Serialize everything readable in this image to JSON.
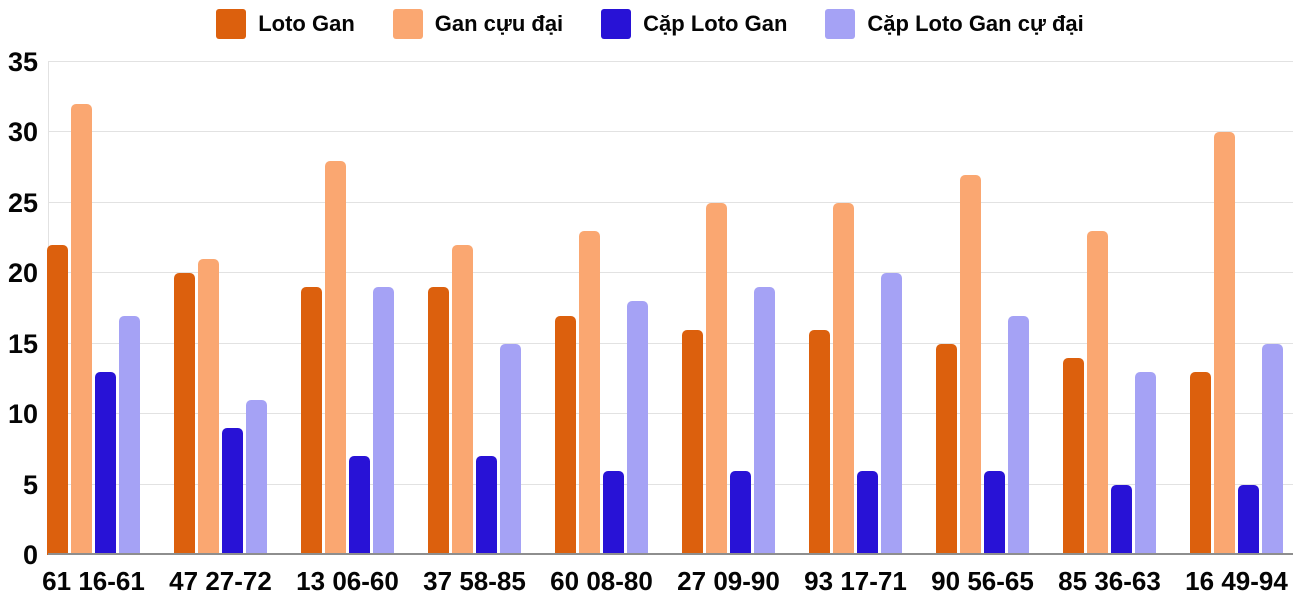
{
  "chart_data": {
    "type": "bar",
    "title": "",
    "xlabel": "",
    "ylabel": "",
    "ylim": [
      0,
      35
    ],
    "yticks": [
      0,
      5,
      10,
      15,
      20,
      25,
      30,
      35
    ],
    "grid": true,
    "legend_position": "top",
    "categories": [
      "61 16-61",
      "47 27-72",
      "13 06-60",
      "37 58-85",
      "60 08-80",
      "27 09-90",
      "93 17-71",
      "90 56-65",
      "85 36-63",
      "16 49-94"
    ],
    "series": [
      {
        "name": "Loto Gan",
        "color": "#dc600d",
        "values": [
          22,
          20,
          19,
          19,
          17,
          16,
          16,
          15,
          14,
          13
        ]
      },
      {
        "name": "Gan cựu đại",
        "color": "#faa771",
        "values": [
          32,
          21,
          28,
          22,
          23,
          25,
          25,
          27,
          23,
          30
        ]
      },
      {
        "name": "Cặp Loto Gan",
        "color": "#2812d6",
        "values": [
          13,
          9,
          7,
          7,
          6,
          6,
          6,
          6,
          5,
          5
        ]
      },
      {
        "name": "Cặp Loto Gan cự đại",
        "color": "#a5a2f5",
        "values": [
          17,
          11,
          19,
          15,
          18,
          19,
          20,
          17,
          13,
          15
        ]
      }
    ],
    "colors": {
      "gridline": "#e2e2e2",
      "baseline": "#8e8e8e",
      "text": "#050505"
    }
  }
}
